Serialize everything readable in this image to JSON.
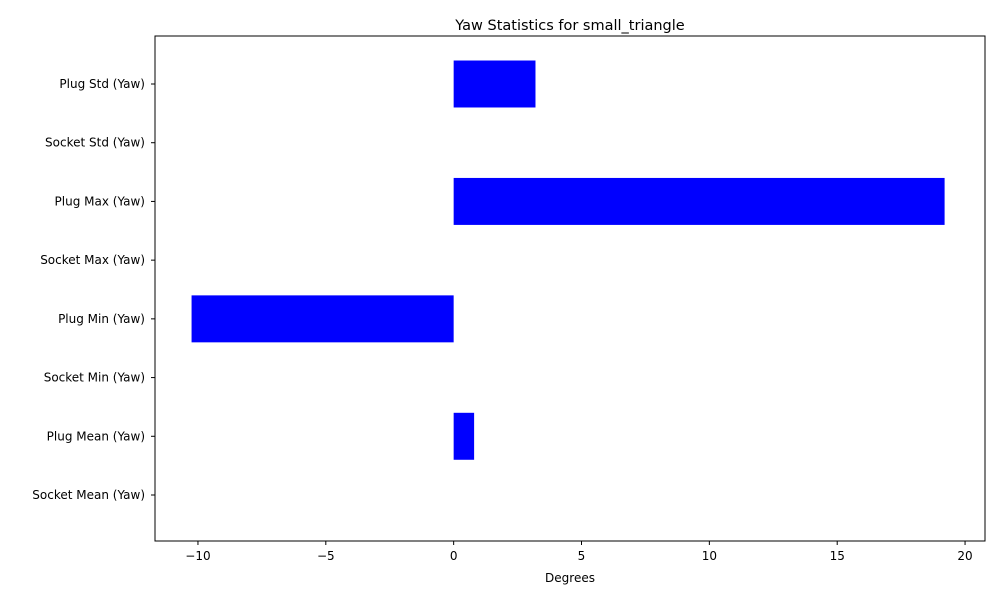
{
  "chart_data": {
    "type": "bar",
    "orientation": "horizontal",
    "title": "Yaw Statistics for small_triangle",
    "xlabel": "Degrees",
    "ylabel": "",
    "xlim": [
      -11.68,
      20.78
    ],
    "xticks": [
      -10,
      -5,
      0,
      5,
      10,
      15,
      20
    ],
    "xtick_labels": [
      "−10",
      "−5",
      "0",
      "5",
      "10",
      "15",
      "20"
    ],
    "categories": [
      "Socket Mean (Yaw)",
      "Plug Mean (Yaw)",
      "Socket Min (Yaw)",
      "Plug Min (Yaw)",
      "Socket Max (Yaw)",
      "Plug Max (Yaw)",
      "Socket Std (Yaw)",
      "Plug Std (Yaw)"
    ],
    "values": [
      0,
      0.8,
      0,
      -10.25,
      0,
      19.2,
      0,
      3.2
    ],
    "bar_color": "#0000ff",
    "grid": false,
    "legend": "none"
  }
}
